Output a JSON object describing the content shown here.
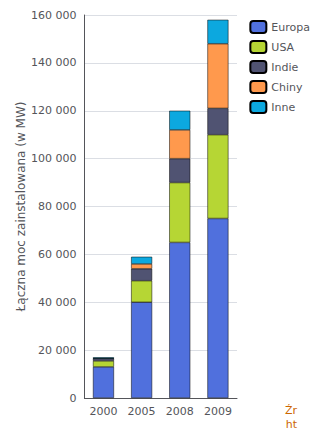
{
  "chart_data": {
    "type": "bar",
    "stacked": true,
    "categories": [
      "2000",
      "2005",
      "2008",
      "2009"
    ],
    "series": [
      {
        "name": "Europa",
        "values": [
          13000,
          40000,
          65000,
          75000
        ]
      },
      {
        "name": "USA",
        "values": [
          2500,
          9000,
          25000,
          35000
        ]
      },
      {
        "name": "Indie",
        "values": [
          1000,
          5000,
          10000,
          11000
        ]
      },
      {
        "name": "Chiny",
        "values": [
          0,
          2000,
          12000,
          27000
        ]
      },
      {
        "name": "Inne",
        "values": [
          500,
          3000,
          8000,
          10000
        ]
      }
    ],
    "ylabel": "Łączna moc zainstalowana (w MW)",
    "ylim": [
      0,
      160000
    ],
    "yticks": [
      0,
      {
        "value": 20000,
        "label": "20 000"
      },
      {
        "value": 40000,
        "label": "40 000"
      },
      {
        "value": 60000,
        "label": "60 000"
      },
      {
        "value": 80000,
        "label": "80 000"
      },
      {
        "value": 100000,
        "label": "100 000"
      },
      {
        "value": 120000,
        "label": "120 000"
      },
      {
        "value": 140000,
        "label": "140 000"
      },
      {
        "value": 160000,
        "label": "160 000"
      }
    ],
    "grid": true,
    "legend": "right",
    "annotations": [
      {
        "text": "Źr",
        "color": "#cc6600"
      },
      {
        "text": "ht",
        "color": "#cc6600"
      }
    ]
  }
}
